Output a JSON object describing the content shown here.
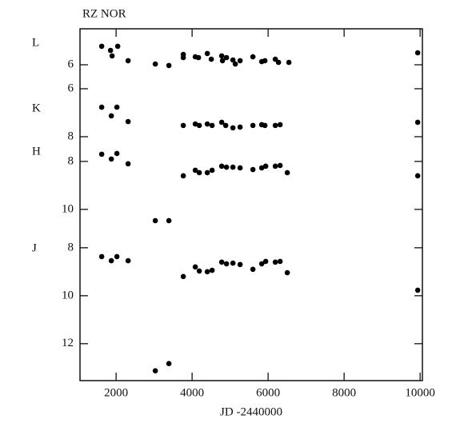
{
  "chart_data": {
    "type": "scatter",
    "title": "RZ NOR",
    "xlabel": "JD -2440000",
    "xlim": [
      1050,
      10060
    ],
    "xticks": [
      2000,
      4000,
      6000,
      8000,
      10000
    ],
    "series": [
      {
        "name": "L",
        "color": "#000000",
        "ylim": [
          4.5,
          19.17
        ],
        "yticks": [
          6
        ],
        "x": [
          1621,
          1853,
          1895,
          2042,
          2316,
          3032,
          3389,
          3768,
          3768,
          4084,
          4168,
          4400,
          4505,
          4779,
          4800,
          4905,
          5074,
          5137,
          5263,
          5600,
          5832,
          5916,
          6189,
          6274,
          6547,
          9937
        ],
        "values": [
          5.23,
          5.4,
          5.63,
          5.23,
          5.83,
          5.97,
          6.03,
          5.57,
          5.7,
          5.67,
          5.7,
          5.53,
          5.77,
          5.63,
          5.83,
          5.7,
          5.8,
          5.97,
          5.83,
          5.67,
          5.87,
          5.83,
          5.77,
          5.9,
          5.9,
          5.5
        ]
      },
      {
        "name": "K",
        "color": "#000000",
        "ylim": [
          3.5,
          18.17
        ],
        "yticks": [
          6,
          8
        ],
        "x": [
          1621,
          1874,
          2021,
          2316,
          3768,
          4084,
          4189,
          4400,
          4526,
          4779,
          4884,
          5074,
          5263,
          5600,
          5832,
          5916,
          6189,
          6316,
          9937
        ],
        "values": [
          6.77,
          7.13,
          6.77,
          7.37,
          7.53,
          7.47,
          7.53,
          7.47,
          7.53,
          7.4,
          7.53,
          7.63,
          7.6,
          7.53,
          7.5,
          7.53,
          7.53,
          7.5,
          7.4
        ]
      },
      {
        "name": "H",
        "color": "#000000",
        "ylim": [
          2.47,
          17.14
        ],
        "yticks": [
          8,
          10
        ],
        "x": [
          1621,
          1874,
          2021,
          2316,
          3032,
          3389,
          3768,
          4084,
          4189,
          4400,
          4526,
          4779,
          4905,
          5074,
          5263,
          5600,
          5832,
          5937,
          6189,
          6316,
          6505,
          9937
        ],
        "values": [
          7.7,
          7.9,
          7.67,
          8.1,
          10.47,
          10.47,
          8.6,
          8.37,
          8.47,
          8.47,
          8.37,
          8.2,
          8.24,
          8.24,
          8.27,
          8.34,
          8.27,
          8.2,
          8.2,
          8.17,
          8.47,
          8.6
        ]
      },
      {
        "name": "J",
        "color": "#000000",
        "ylim": [
          -1.13,
          13.54
        ],
        "yticks": [
          8,
          10,
          12
        ],
        "x": [
          1621,
          1874,
          2021,
          2316,
          3032,
          3389,
          3768,
          4084,
          4189,
          4400,
          4526,
          4779,
          4905,
          5074,
          5263,
          5600,
          5832,
          5937,
          6189,
          6316,
          6505,
          9937
        ],
        "values": [
          8.37,
          8.54,
          8.37,
          8.54,
          13.13,
          12.83,
          9.2,
          8.8,
          8.97,
          9.0,
          8.94,
          8.6,
          8.67,
          8.64,
          8.7,
          8.9,
          8.67,
          8.57,
          8.6,
          8.57,
          9.04,
          9.77
        ]
      }
    ]
  }
}
